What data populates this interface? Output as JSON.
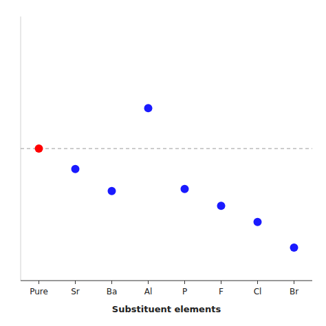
{
  "chart_data": {
    "type": "scatter",
    "xlabel": "Substituent elements",
    "categories": [
      "Pure",
      "Sr",
      "Ba",
      "Al",
      "P",
      "F",
      "Cl",
      "Br"
    ],
    "values": [
      5.0,
      4.72,
      4.42,
      5.55,
      4.45,
      4.22,
      4.0,
      3.65
    ],
    "colors": [
      "#ff0000",
      "#1a1aff",
      "#1a1aff",
      "#1a1aff",
      "#1a1aff",
      "#1a1aff",
      "#1a1aff",
      "#1a1aff"
    ],
    "ylim": [
      3.2,
      6.8
    ],
    "reference_line": 5.0,
    "tick_labels": "x",
    "grid": false
  }
}
